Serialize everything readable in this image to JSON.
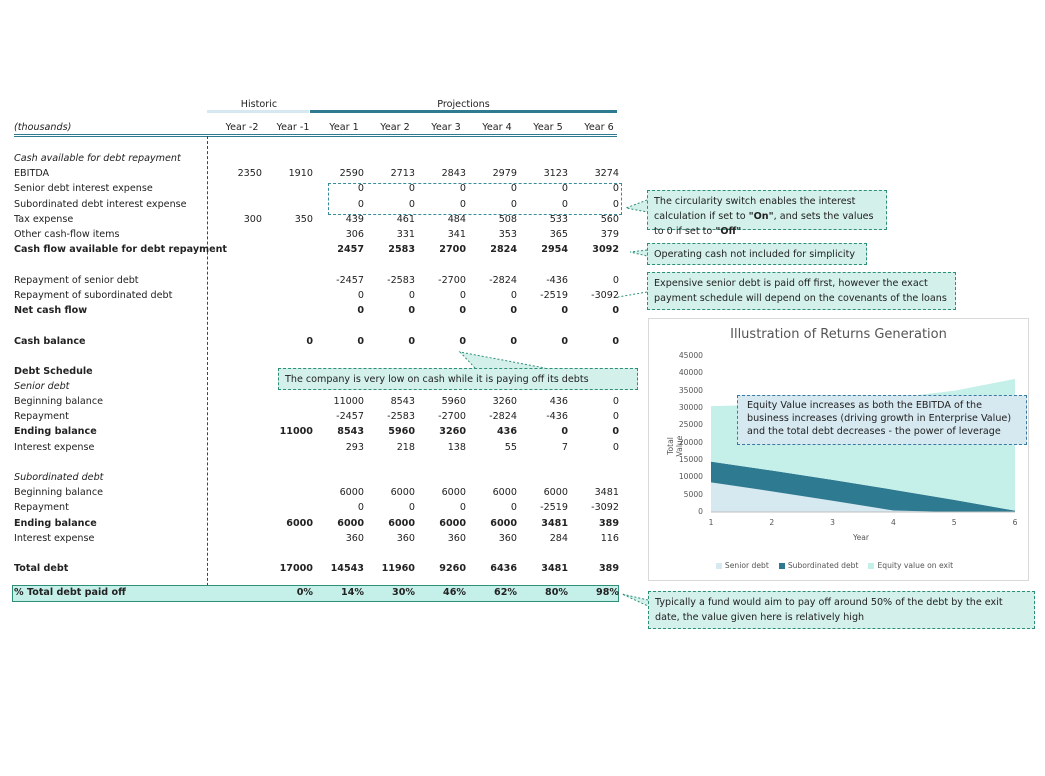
{
  "header": {
    "historic": "Historic",
    "projections": "Projections",
    "units": "(thousands)",
    "years": [
      "Year -2",
      "Year -1",
      "Year 1",
      "Year 2",
      "Year 3",
      "Year 4",
      "Year 5",
      "Year 6"
    ]
  },
  "rows": [
    {
      "label": "Cash available for debt repayment",
      "style": "it",
      "values": [
        "",
        "",
        "",
        "",
        "",
        "",
        "",
        ""
      ]
    },
    {
      "label": "EBITDA",
      "style": "",
      "values": [
        "2350",
        "1910",
        "2590",
        "2713",
        "2843",
        "2979",
        "3123",
        "3274"
      ]
    },
    {
      "label": "Senior debt interest expense",
      "style": "",
      "values": [
        "",
        "",
        "0",
        "0",
        "0",
        "0",
        "0",
        "0"
      ]
    },
    {
      "label": "Subordinated debt interest expense",
      "style": "",
      "values": [
        "",
        "",
        "0",
        "0",
        "0",
        "0",
        "0",
        "0"
      ]
    },
    {
      "label": "Tax expense",
      "style": "",
      "values": [
        "300",
        "350",
        "439",
        "461",
        "484",
        "508",
        "533",
        "560"
      ]
    },
    {
      "label": "Other cash-flow items",
      "style": "",
      "values": [
        "",
        "",
        "306",
        "331",
        "341",
        "353",
        "365",
        "379"
      ]
    },
    {
      "label": "Cash flow available for debt repayment",
      "style": "b",
      "values": [
        "",
        "",
        "2457",
        "2583",
        "2700",
        "2824",
        "2954",
        "3092"
      ]
    },
    {
      "label": "Repayment of senior debt",
      "style": "",
      "values": [
        "",
        "",
        "-2457",
        "-2583",
        "-2700",
        "-2824",
        "-436",
        "0"
      ]
    },
    {
      "label": "Repayment of subordinated debt",
      "style": "",
      "values": [
        "",
        "",
        "0",
        "0",
        "0",
        "0",
        "-2519",
        "-3092"
      ]
    },
    {
      "label": "Net cash flow",
      "style": "b",
      "values": [
        "",
        "",
        "0",
        "0",
        "0",
        "0",
        "0",
        "0"
      ]
    },
    {
      "label": "Cash balance",
      "style": "b",
      "values": [
        "",
        "0",
        "0",
        "0",
        "0",
        "0",
        "0",
        "0"
      ]
    },
    {
      "label": "Debt Schedule",
      "style": "b",
      "values": [
        "",
        "",
        "",
        "",
        "",
        "",
        "",
        ""
      ]
    },
    {
      "label": "Senior debt",
      "style": "it",
      "values": [
        "",
        "",
        "",
        "",
        "",
        "",
        "",
        ""
      ]
    },
    {
      "label": "Beginning balance",
      "style": "",
      "values": [
        "",
        "",
        "11000",
        "8543",
        "5960",
        "3260",
        "436",
        "0"
      ]
    },
    {
      "label": "Repayment",
      "style": "",
      "values": [
        "",
        "",
        "-2457",
        "-2583",
        "-2700",
        "-2824",
        "-436",
        "0"
      ]
    },
    {
      "label": "Ending balance",
      "style": "b",
      "values": [
        "",
        "11000",
        "8543",
        "5960",
        "3260",
        "436",
        "0",
        "0"
      ]
    },
    {
      "label": "Interest expense",
      "style": "",
      "values": [
        "",
        "",
        "293",
        "218",
        "138",
        "55",
        "7",
        "0"
      ]
    },
    {
      "label": "Subordinated debt",
      "style": "it",
      "values": [
        "",
        "",
        "",
        "",
        "",
        "",
        "",
        ""
      ]
    },
    {
      "label": "Beginning balance",
      "style": "",
      "values": [
        "",
        "",
        "6000",
        "6000",
        "6000",
        "6000",
        "6000",
        "3481"
      ]
    },
    {
      "label": "Repayment",
      "style": "",
      "values": [
        "",
        "",
        "0",
        "0",
        "0",
        "0",
        "-2519",
        "-3092"
      ]
    },
    {
      "label": "Ending balance",
      "style": "b",
      "values": [
        "",
        "6000",
        "6000",
        "6000",
        "6000",
        "6000",
        "3481",
        "389"
      ]
    },
    {
      "label": "Interest expense",
      "style": "",
      "values": [
        "",
        "",
        "360",
        "360",
        "360",
        "360",
        "284",
        "116"
      ]
    },
    {
      "label": "Total debt",
      "style": "b",
      "values": [
        "",
        "17000",
        "14543",
        "11960",
        "9260",
        "6436",
        "3481",
        "389"
      ]
    },
    {
      "label": "% Total debt paid off",
      "style": "b",
      "values": [
        "",
        "0%",
        "14%",
        "30%",
        "46%",
        "62%",
        "80%",
        "98%"
      ]
    }
  ],
  "callouts": {
    "circularity": "The circularity switch enables the interest calculation if set to",
    "on": "\"On\"",
    "mid": ", and sets the values to 0 if set to",
    "off": "\"Off\"",
    "operating": "Operating cash not included for simplicity",
    "expensive": "Expensive senior debt is paid off first, however the exact payment schedule will depend on the covenants of the loans",
    "lowcash": "The company is very low on cash while it is paying off its debts",
    "fund": "Typically a fund would aim to pay off around 50% of the debt by the exit date, the value given here is relatively high",
    "equity": "Equity Value increases as both the EBITDA of the business increases (driving growth in Enterprise Value) and the total debt decreases - the power of leverage"
  },
  "chart_data": {
    "type": "area",
    "title": "Illustration of Returns Generation",
    "xlabel": "Year",
    "ylabel": "Total Value",
    "x": [
      1,
      2,
      3,
      4,
      5,
      6
    ],
    "ylim": [
      0,
      45000
    ],
    "yticks": [
      0,
      5000,
      10000,
      15000,
      20000,
      25000,
      30000,
      35000,
      40000,
      45000
    ],
    "series": [
      {
        "name": "Senior debt",
        "color": "#d6e8f0",
        "values": [
          8543,
          5960,
          3260,
          436,
          0,
          0
        ]
      },
      {
        "name": "Subordinated debt",
        "color": "#2e7a91",
        "values": [
          6000,
          6000,
          6000,
          6000,
          3481,
          389
        ]
      },
      {
        "name": "Equity value on exit",
        "color": "#c5f0ea",
        "values": [
          16000,
          19000,
          22500,
          26500,
          31500,
          38000
        ]
      }
    ],
    "legend_position": "bottom"
  }
}
